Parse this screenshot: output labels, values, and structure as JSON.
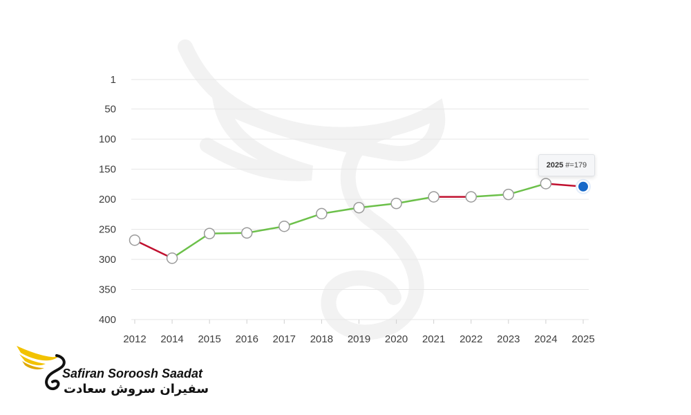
{
  "chart_data": {
    "type": "line",
    "title": "",
    "xlabel": "",
    "ylabel": "",
    "y_axis_inverted": true,
    "ylim": [
      1,
      400
    ],
    "yticks": [
      1,
      50,
      100,
      150,
      200,
      250,
      300,
      350,
      400
    ],
    "categories": [
      "2012",
      "2014",
      "2015",
      "2016",
      "2017",
      "2018",
      "2019",
      "2020",
      "2021",
      "2022",
      "2023",
      "2024",
      "2025"
    ],
    "values": [
      268,
      298,
      257,
      256,
      245,
      224,
      214,
      207,
      196,
      196,
      192,
      174,
      179
    ],
    "grid": true,
    "colors": {
      "rise": "#6cc04a",
      "fall": "#c0102f",
      "highlight_point": "#1668c8",
      "point_fill": "#ffffff",
      "point_stroke": "#9a9a9a",
      "grid": "#e6e6e6"
    },
    "highlighted": {
      "year": "2025",
      "label": "#=179"
    }
  },
  "logo": {
    "name_en": "Safiran Soroosh Saadat",
    "name_fa": "سفیران سروش سعادت",
    "colors": {
      "wing": "#f2c200",
      "text": "#111111"
    }
  }
}
